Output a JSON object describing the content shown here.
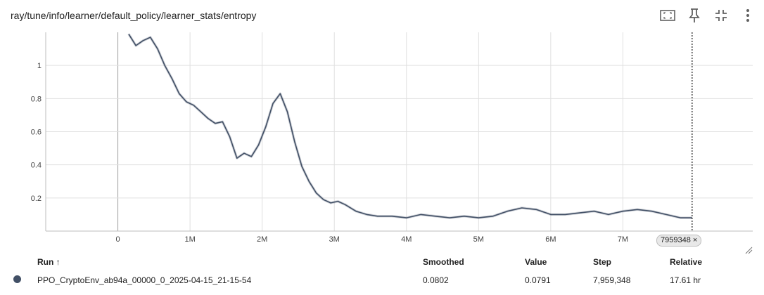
{
  "card": {
    "title": "ray/tune/info/learner/default_policy/learner_stats/entropy",
    "toolbar": [
      {
        "name": "fit-domain-icon"
      },
      {
        "name": "pin-icon"
      },
      {
        "name": "collapse-icon"
      },
      {
        "name": "more-vert-icon"
      }
    ]
  },
  "chart_data": {
    "type": "line",
    "x_ticks": [
      "0",
      "1M",
      "2M",
      "3M",
      "4M",
      "5M",
      "6M",
      "7M"
    ],
    "y_ticks": [
      "0.2",
      "0.4",
      "0.6",
      "0.8",
      "1"
    ],
    "xlim": [
      -1000000,
      8800000
    ],
    "ylim": [
      0,
      1.2
    ],
    "grid": true,
    "series": [
      {
        "color": "#425066",
        "x": [
          150000,
          250000,
          350000,
          450000,
          550000,
          650000,
          750000,
          850000,
          950000,
          1050000,
          1150000,
          1250000,
          1350000,
          1450000,
          1550000,
          1650000,
          1750000,
          1850000,
          1950000,
          2050000,
          2150000,
          2250000,
          2350000,
          2450000,
          2550000,
          2650000,
          2750000,
          2850000,
          2950000,
          3050000,
          3150000,
          3300000,
          3450000,
          3600000,
          3800000,
          4000000,
          4200000,
          4400000,
          4600000,
          4800000,
          5000000,
          5200000,
          5400000,
          5600000,
          5800000,
          6000000,
          6200000,
          6400000,
          6600000,
          6800000,
          7000000,
          7200000,
          7400000,
          7600000,
          7800000,
          7959348
        ],
        "y": [
          1.19,
          1.12,
          1.15,
          1.17,
          1.1,
          1.0,
          0.92,
          0.83,
          0.78,
          0.76,
          0.72,
          0.68,
          0.65,
          0.66,
          0.57,
          0.44,
          0.47,
          0.45,
          0.52,
          0.63,
          0.77,
          0.83,
          0.72,
          0.54,
          0.39,
          0.3,
          0.23,
          0.19,
          0.17,
          0.18,
          0.16,
          0.12,
          0.1,
          0.09,
          0.09,
          0.08,
          0.1,
          0.09,
          0.08,
          0.09,
          0.08,
          0.09,
          0.12,
          0.14,
          0.13,
          0.1,
          0.1,
          0.11,
          0.12,
          0.1,
          0.12,
          0.13,
          0.12,
          0.1,
          0.08,
          0.08
        ]
      }
    ],
    "hover_step_label": "7959348",
    "hover_close": "×"
  },
  "tooltip": {
    "headers": {
      "run": "Run ↑",
      "smoothed": "Smoothed",
      "value": "Value",
      "step": "Step",
      "relative": "Relative"
    },
    "rows": [
      {
        "run": "PPO_CryptoEnv_ab94a_00000_0_2025-04-15_21-15-54",
        "smoothed": "0.0802",
        "value": "0.0791",
        "step": "7,959,348",
        "relative": "17.61 hr",
        "color": "#425066"
      }
    ]
  }
}
